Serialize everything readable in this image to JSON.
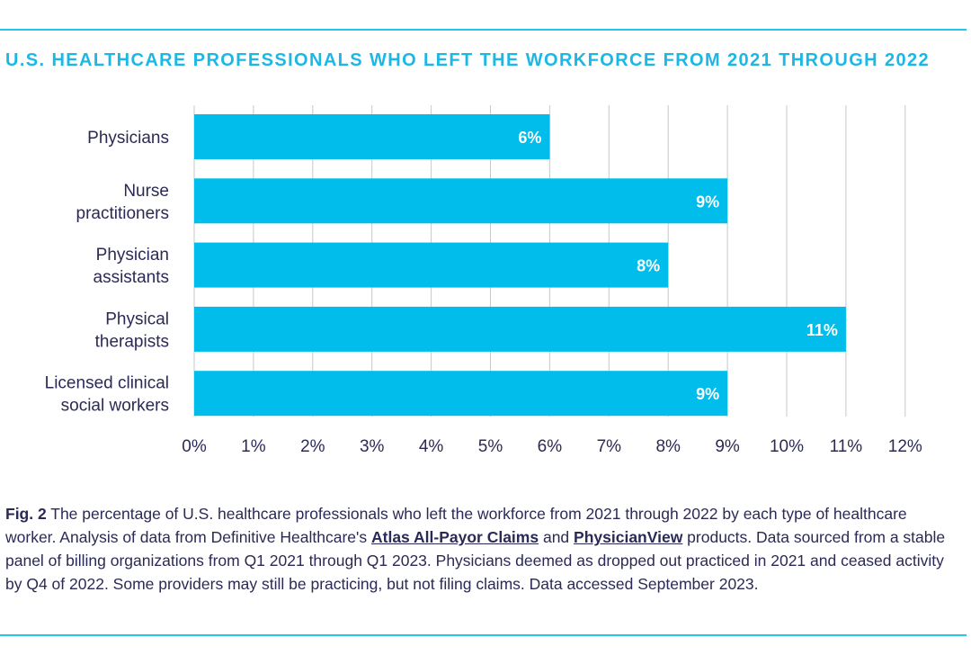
{
  "chart_data": {
    "type": "bar",
    "orientation": "horizontal",
    "title": "U.S. HEALTHCARE PROFESSIONALS WHO LEFT THE WORKFORCE FROM 2021 THROUGH 2022",
    "categories": [
      [
        "Physicians"
      ],
      [
        "Nurse",
        "practitioners"
      ],
      [
        "Physician",
        "assistants"
      ],
      [
        "Physical",
        "therapists"
      ],
      [
        "Licensed clinical",
        "social workers"
      ]
    ],
    "values": [
      6,
      9,
      8,
      11,
      9
    ],
    "data_labels": [
      "6%",
      "9%",
      "8%",
      "11%",
      "9%"
    ],
    "xlim": [
      0,
      12
    ],
    "x_ticks": [
      "0%",
      "1%",
      "2%",
      "3%",
      "4%",
      "5%",
      "6%",
      "7%",
      "8%",
      "9%",
      "10%",
      "11%",
      "12%"
    ],
    "xlabel": "",
    "ylabel": "",
    "grid": "vertical",
    "bar_color": "#00bdeb",
    "label_color": "#ffffff",
    "grid_color": "#c8c8c8"
  },
  "caption": {
    "fig_label": "Fig. 2",
    "text_1": " The percentage of U.S. healthcare professionals who left the workforce from 2021 through 2022 by each type of healthcare worker. Analysis of data from Definitive Healthcare's ",
    "link_1": "Atlas All-Payor Claims",
    "text_2": " and ",
    "link_2": "PhysicianView",
    "text_3": " products. Data sourced from a stable panel of billing organizations from Q1 2021 through Q1 2023. Physicians deemed as dropped out practiced in 2021 and ceased activity by Q4 of 2022. Some providers may still be practicing, but not filing claims. Data accessed September 2023."
  },
  "colors": {
    "accent": "#1bb8e6",
    "text": "#2b2a55",
    "rule": "#29c4e9"
  }
}
